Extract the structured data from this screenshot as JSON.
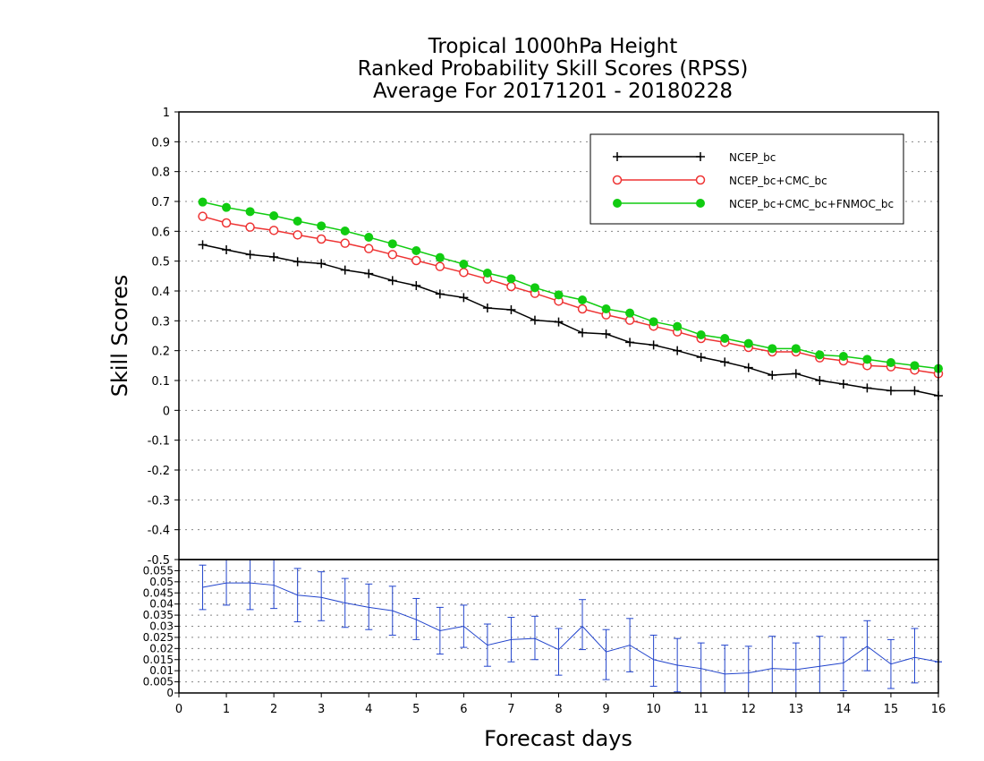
{
  "chart_data": [
    {
      "type": "line",
      "title_lines": [
        "Tropical 1000hPa Height",
        "Ranked Probability Skill Scores (RPSS)",
        "Average For 20171201 - 20180228"
      ],
      "xlabel": "Forecast days",
      "ylabel": "Skill Scores",
      "xlim": [
        0,
        16
      ],
      "ylim": [
        -0.5,
        1
      ],
      "x_ticks": [
        "0",
        "1",
        "2",
        "3",
        "4",
        "5",
        "6",
        "7",
        "8",
        "9",
        "10",
        "11",
        "12",
        "13",
        "14",
        "15",
        "16"
      ],
      "y_ticks": [
        "-0.5",
        "-0.4",
        "-0.3",
        "-0.2",
        "-0.1",
        "0",
        "0.1",
        "0.2",
        "0.3",
        "0.4",
        "0.5",
        "0.6",
        "0.7",
        "0.8",
        "0.9",
        "1"
      ],
      "grid": true,
      "legend_position": "top-right",
      "x": [
        0.5,
        1,
        1.5,
        2,
        2.5,
        3,
        3.5,
        4,
        4.5,
        5,
        5.5,
        6,
        6.5,
        7,
        7.5,
        8,
        8.5,
        9,
        9.5,
        10,
        10.5,
        11,
        11.5,
        12,
        12.5,
        13,
        13.5,
        14,
        14.5,
        15,
        15.5,
        16
      ],
      "series": [
        {
          "name": "NCEP_bc",
          "color": "#000000",
          "marker": "plus",
          "values": [
            0.555,
            0.538,
            0.522,
            0.514,
            0.498,
            0.492,
            0.47,
            0.458,
            0.435,
            0.418,
            0.39,
            0.378,
            0.343,
            0.337,
            0.302,
            0.296,
            0.26,
            0.256,
            0.228,
            0.219,
            0.2,
            0.178,
            0.162,
            0.143,
            0.118,
            0.123,
            0.1,
            0.088,
            0.075,
            0.066,
            0.066,
            0.049
          ]
        },
        {
          "name": "NCEP_bc+CMC_bc",
          "color": "#ee3333",
          "marker": "open-circle",
          "values": [
            0.65,
            0.628,
            0.614,
            0.603,
            0.588,
            0.574,
            0.56,
            0.542,
            0.522,
            0.502,
            0.482,
            0.462,
            0.44,
            0.415,
            0.392,
            0.366,
            0.34,
            0.32,
            0.302,
            0.282,
            0.263,
            0.241,
            0.228,
            0.211,
            0.196,
            0.196,
            0.176,
            0.166,
            0.15,
            0.146,
            0.135,
            0.123
          ]
        },
        {
          "name": "NCEP_bc+CMC_bc+FNMOC_bc",
          "color": "#11cc11",
          "marker": "filled-circle",
          "values": [
            0.698,
            0.68,
            0.666,
            0.652,
            0.634,
            0.618,
            0.601,
            0.58,
            0.558,
            0.535,
            0.512,
            0.49,
            0.46,
            0.441,
            0.411,
            0.387,
            0.37,
            0.34,
            0.326,
            0.297,
            0.281,
            0.253,
            0.241,
            0.224,
            0.207,
            0.207,
            0.186,
            0.181,
            0.171,
            0.16,
            0.15,
            0.14
          ]
        }
      ]
    },
    {
      "type": "line",
      "xlim": [
        0,
        16
      ],
      "ylim": [
        0,
        0.06
      ],
      "y_ticks": [
        "0",
        "0.005",
        "0.01",
        "0.015",
        "0.02",
        "0.025",
        "0.03",
        "0.035",
        "0.04",
        "0.045",
        "0.05",
        "0.055"
      ],
      "grid": true,
      "baseline": 0,
      "series": [
        {
          "color": "#2244cc",
          "values": [
            0.0475,
            0.0495,
            0.0495,
            0.0485,
            0.044,
            0.043,
            0.0405,
            0.0385,
            0.037,
            0.033,
            0.028,
            0.03,
            0.0215,
            0.024,
            0.0245,
            0.0195,
            0.03,
            0.0185,
            0.0215,
            0.015,
            0.0125,
            0.011,
            0.0085,
            0.009,
            0.011,
            0.0105,
            0.012,
            0.0135,
            0.021,
            0.013,
            0.016,
            0.014
          ],
          "error_low": [
            0.0375,
            0.0395,
            0.0375,
            0.038,
            0.032,
            0.0325,
            0.0295,
            0.0285,
            0.026,
            0.024,
            0.0175,
            0.0205,
            0.012,
            0.014,
            0.015,
            0.008,
            0.0195,
            0.006,
            0.0095,
            0.003,
            0.0005,
            -0.0003,
            -0.005,
            -0.005,
            -0.004,
            -0.0045,
            -0.001,
            0.001,
            0.01,
            0.002,
            0.0045,
            0.014
          ],
          "error_high": [
            0.0575,
            0.0605,
            0.0615,
            0.06,
            0.056,
            0.0545,
            0.0515,
            0.049,
            0.048,
            0.0425,
            0.0385,
            0.0395,
            0.031,
            0.034,
            0.0345,
            0.029,
            0.042,
            0.0285,
            0.0335,
            0.026,
            0.0245,
            0.0225,
            0.0215,
            0.021,
            0.0255,
            0.0225,
            0.0255,
            0.025,
            0.0325,
            0.024,
            0.029,
            0.014
          ]
        }
      ]
    }
  ]
}
